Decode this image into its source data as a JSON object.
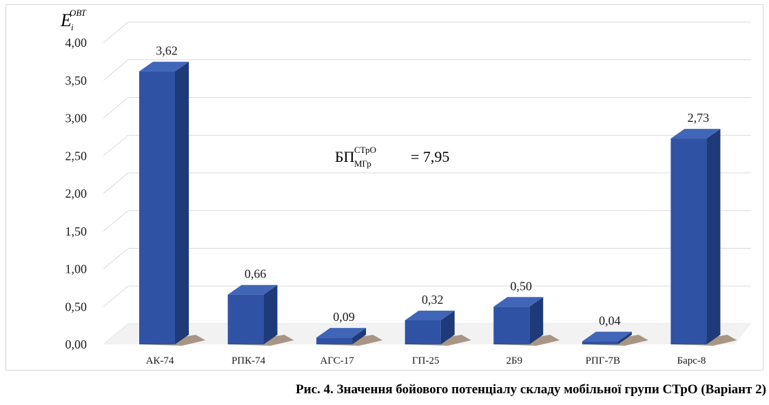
{
  "chart_data": {
    "type": "bar",
    "categories": [
      "АК-74",
      "РПК-74",
      "АГС-17",
      "ГП-25",
      "2Б9",
      "РПГ-7В",
      "Барс-8"
    ],
    "values": [
      3.62,
      0.66,
      0.09,
      0.32,
      0.5,
      0.04,
      2.73
    ],
    "value_labels": [
      "3,62",
      "0,66",
      "0,09",
      "0,32",
      "0,50",
      "0,04",
      "2,73"
    ],
    "ylim": [
      0,
      4
    ],
    "yticks": [
      "0,00",
      "0,50",
      "1,00",
      "1,50",
      "2,00",
      "2,50",
      "3,00",
      "3,50",
      "4,00"
    ],
    "ylabel": {
      "main": "E",
      "sub": "i",
      "sup": "ОВТ"
    },
    "annotation": {
      "main": "БП",
      "sup": "СТрО",
      "sub": "МГр",
      "value": "= 7,95"
    },
    "grid": true,
    "style": "3d-column",
    "colors": {
      "bar_front": "#2f52a4",
      "bar_side": "#1f3a78",
      "bar_top": "#4166b8",
      "grid": "#d9d9d9",
      "floor_shadow": "#6b4a2a"
    }
  },
  "caption": "Рис. 4. Значення бойового потенціалу складу мобільної групи СТрО (Варіант 2)"
}
